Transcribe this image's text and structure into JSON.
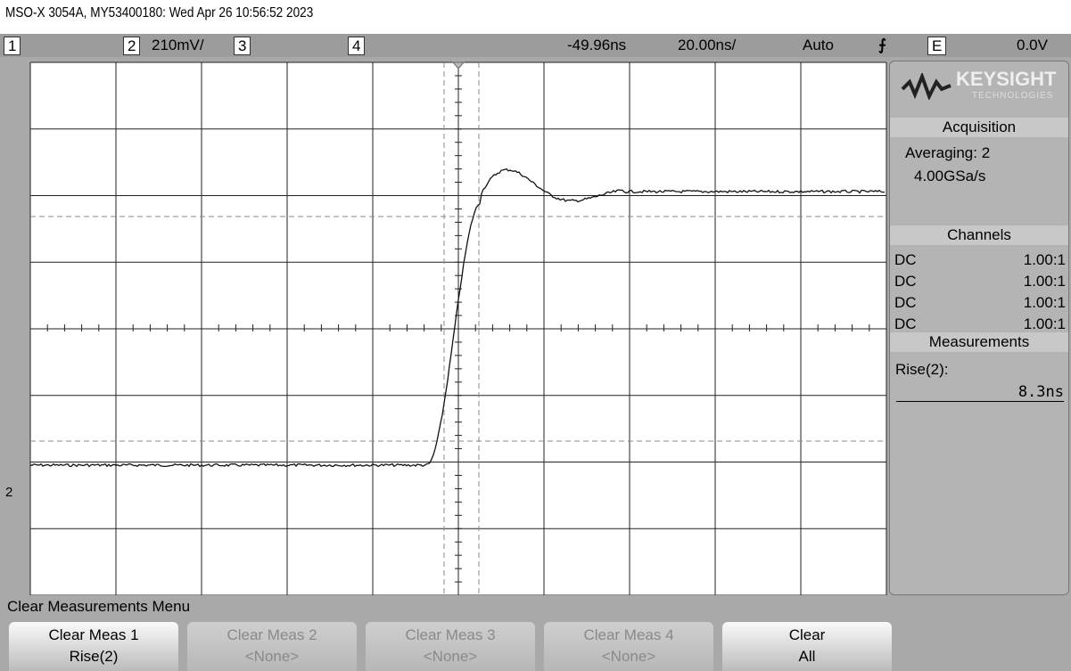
{
  "header": {
    "title": "MSO-X 3054A, MY53400180: Wed Apr 26 10:56:52 2023"
  },
  "status_bar": {
    "ch1": "1",
    "ch2": "2",
    "ch2_scale": "210mV/",
    "ch3": "3",
    "ch4": "4",
    "delay": "-49.96ns",
    "timebase": "20.00ns/",
    "trigger_mode": "Auto",
    "trigger_source": "E",
    "trigger_level": "0.0V"
  },
  "side_panel": {
    "brand": "KEYSIGHT",
    "brand_sub": "TECHNOLOGIES",
    "acquisition": {
      "title": "Acquisition",
      "mode": "Averaging: 2",
      "rate": "4.00GSa/s"
    },
    "channels": {
      "title": "Channels",
      "rows": [
        [
          "DC",
          "1.00:1"
        ],
        [
          "DC",
          "1.00:1"
        ],
        [
          "DC",
          "1.00:1"
        ],
        [
          "DC",
          "1.00:1"
        ]
      ]
    },
    "measurements": {
      "title": "Measurements",
      "name": "Rise(2):",
      "value": "8.3ns"
    }
  },
  "ground_marker": "2",
  "menu": {
    "title": "Clear Measurements Menu",
    "softkeys": [
      [
        "Clear Meas 1",
        "Rise(2)"
      ],
      [
        "Clear Meas 2",
        "<None>"
      ],
      [
        "Clear Meas 3",
        "<None>"
      ],
      [
        "Clear Meas 4",
        "<None>"
      ],
      [
        "Clear",
        "All"
      ]
    ]
  }
}
